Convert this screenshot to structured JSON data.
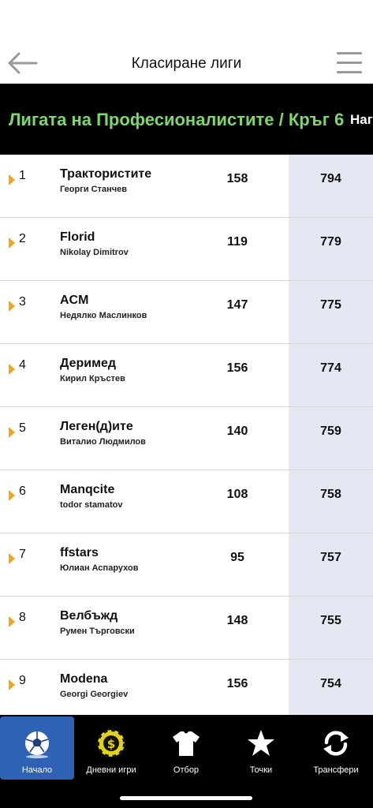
{
  "header": {
    "title": "Класиране лиги"
  },
  "banner": {
    "league": "Лигата на Професионалистите / Кръг 6",
    "next": "Наг"
  },
  "rows": [
    {
      "rank": "1",
      "team": "Трактористите",
      "manager": "Георги Станчев",
      "round": "158",
      "total": "794"
    },
    {
      "rank": "2",
      "team": "Florid",
      "manager": "Nikolay Dimitrov",
      "round": "119",
      "total": "779"
    },
    {
      "rank": "3",
      "team": "ACM",
      "manager": "Недялко Маслинков",
      "round": "147",
      "total": "775"
    },
    {
      "rank": "4",
      "team": "Деримед",
      "manager": "Кирил Кръстев",
      "round": "156",
      "total": "774"
    },
    {
      "rank": "5",
      "team": "Леген(д)ите",
      "manager": "Виталио Людмилов",
      "round": "140",
      "total": "759"
    },
    {
      "rank": "6",
      "team": "Manqcite",
      "manager": "todor stamatov",
      "round": "108",
      "total": "758"
    },
    {
      "rank": "7",
      "team": "ffstars",
      "manager": "Юлиан Аспарухов",
      "round": "95",
      "total": "757"
    },
    {
      "rank": "8",
      "team": "Велбъжд",
      "manager": "Румен Търговски",
      "round": "148",
      "total": "755"
    },
    {
      "rank": "9",
      "team": "Modena",
      "manager": "Georgi Georgiev",
      "round": "156",
      "total": "754"
    }
  ],
  "tabs": [
    {
      "label": "Начало",
      "icon": "soccer-ball-icon",
      "active": true
    },
    {
      "label": "Дневни игри",
      "icon": "dollar-chip-icon",
      "active": false
    },
    {
      "label": "Отбор",
      "icon": "jersey-icon",
      "active": false
    },
    {
      "label": "Точки",
      "icon": "star-icon",
      "active": false
    },
    {
      "label": "Трансфери",
      "icon": "refresh-icon",
      "active": false
    }
  ],
  "colors": {
    "banner_bg": "#000000",
    "league_text": "#7fd66a",
    "arrow": "#f0a61e",
    "total_column_bg": "#e4e8f3",
    "active_tab": "#2e62b4",
    "tabbar_bg": "#000000"
  }
}
